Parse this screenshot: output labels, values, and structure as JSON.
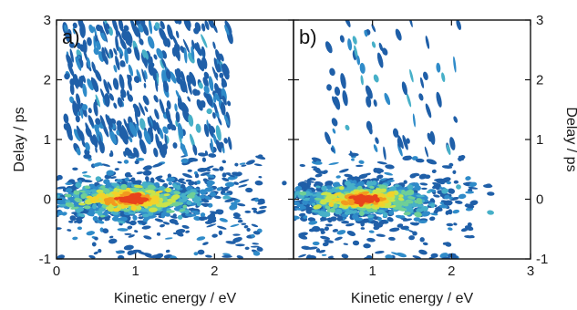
{
  "chart_data": [
    {
      "type": "heatmap",
      "panel_label": "a)",
      "xlabel": "Kinetic energy / eV",
      "ylabel": "Delay / ps",
      "xlim": [
        0,
        3
      ],
      "ylim": [
        -1,
        3
      ],
      "x_ticks": [
        "0",
        "1",
        "2"
      ],
      "y_ticks": [
        "-1",
        "0",
        "1",
        "2",
        "3"
      ],
      "y_axis_side": "left",
      "colormap": [
        "#1f5fa8",
        "#2f8bc9",
        "#47b0c8",
        "#6fcf97",
        "#c9e34a",
        "#f2d22a",
        "#f29a1e",
        "#e8431c"
      ],
      "features": {
        "main_peak": {
          "x_center": 0.95,
          "x_width": 0.65,
          "y_center": 0.0,
          "y_width": 0.17,
          "x_extent": [
            0.0,
            2.6
          ],
          "y_extent": [
            -1.0,
            0.75
          ]
        },
        "streaks": {
          "x_extent": [
            0.1,
            2.2
          ],
          "y_extent": [
            0.75,
            3.0
          ],
          "density": "high"
        }
      }
    },
    {
      "type": "heatmap",
      "panel_label": "b)",
      "xlabel": "Kinetic energy / eV",
      "ylabel": "Delay / ps",
      "xlim": [
        0,
        3
      ],
      "ylim": [
        -1,
        3
      ],
      "x_ticks": [
        "1",
        "2",
        "3"
      ],
      "y_ticks": [
        "-1",
        "0",
        "1",
        "2",
        "3"
      ],
      "y_axis_side": "right",
      "colormap": [
        "#1f5fa8",
        "#2f8bc9",
        "#47b0c8",
        "#6fcf97",
        "#c9e34a",
        "#f2d22a",
        "#f29a1e",
        "#e8431c"
      ],
      "features": {
        "main_peak": {
          "x_center": 0.9,
          "x_width": 0.6,
          "y_center": 0.0,
          "y_width": 0.16,
          "x_extent": [
            0.1,
            2.3
          ],
          "y_extent": [
            -1.0,
            0.75
          ]
        },
        "streaks": {
          "x_extent": [
            0.4,
            2.1
          ],
          "y_extent": [
            0.75,
            3.0
          ],
          "density": "low"
        }
      }
    }
  ]
}
